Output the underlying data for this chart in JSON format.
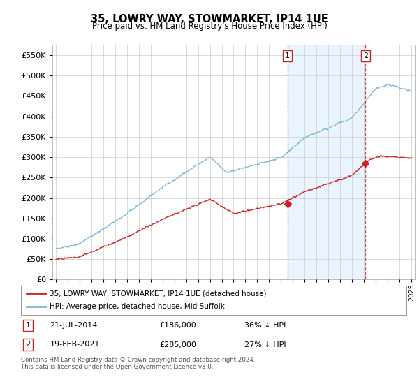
{
  "title": "35, LOWRY WAY, STOWMARKET, IP14 1UE",
  "subtitle": "Price paid vs. HM Land Registry's House Price Index (HPI)",
  "ytick_values": [
    0,
    50000,
    100000,
    150000,
    200000,
    250000,
    300000,
    350000,
    400000,
    450000,
    500000,
    550000
  ],
  "ylim": [
    0,
    575000
  ],
  "xlim_start": 1994.7,
  "xlim_end": 2025.3,
  "hpi_color": "#7ab8d9",
  "price_color": "#cc2222",
  "vline_color": "#cc2222",
  "fill_color": "#ddeeff",
  "sale1_x": 2014.55,
  "sale1_y": 186000,
  "sale2_x": 2021.13,
  "sale2_y": 285000,
  "legend_label1": "35, LOWRY WAY, STOWMARKET, IP14 1UE (detached house)",
  "legend_label2": "HPI: Average price, detached house, Mid Suffolk",
  "footnote": "Contains HM Land Registry data © Crown copyright and database right 2024.\nThis data is licensed under the Open Government Licence v3.0.",
  "background_color": "#ffffff",
  "grid_color": "#cccccc"
}
